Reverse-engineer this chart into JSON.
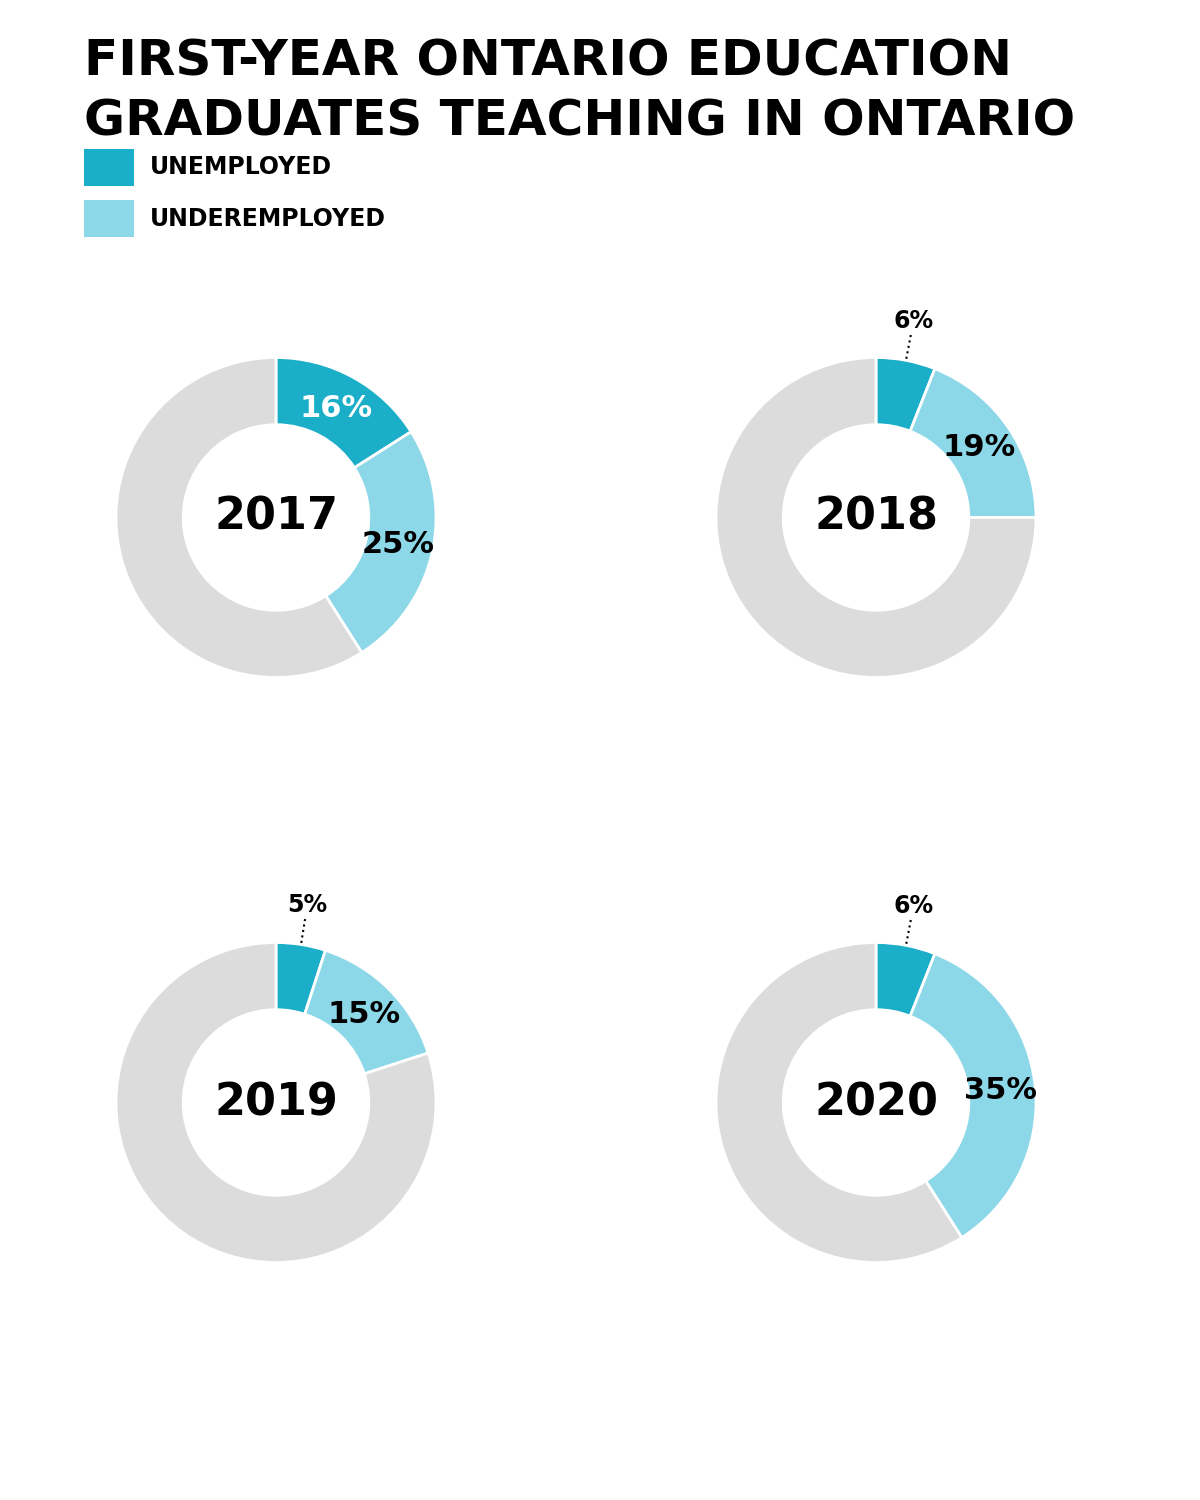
{
  "title_line1": "FIRST-YEAR ONTARIO EDUCATION",
  "title_line2": "GRADUATES TEACHING IN ONTARIO",
  "legend_items": [
    {
      "label": "UNEMPLOYED",
      "color": "#1BAEC8"
    },
    {
      "label": "UNDEREMPLOYED",
      "color": "#8DD8E8"
    }
  ],
  "charts": [
    {
      "year": "2017",
      "unemployed": 16,
      "underemployed": 25,
      "remainder": 59,
      "unemployed_label_inside": true
    },
    {
      "year": "2018",
      "unemployed": 6,
      "underemployed": 19,
      "remainder": 75,
      "unemployed_label_inside": false
    },
    {
      "year": "2019",
      "unemployed": 5,
      "underemployed": 15,
      "remainder": 80,
      "unemployed_label_inside": false
    },
    {
      "year": "2020",
      "unemployed": 6,
      "underemployed": 35,
      "remainder": 59,
      "unemployed_label_inside": false
    }
  ],
  "color_unemployed": "#1BAEC8",
  "color_underemployed": "#8DD8E8",
  "color_remainder": "#DCDCDC",
  "color_background": "#FFFFFF",
  "donut_width": 0.42,
  "title_fontsize": 36,
  "legend_fontsize": 17,
  "year_fontsize": 32,
  "pct_fontsize_inside": 22,
  "pct_fontsize_outside": 17
}
